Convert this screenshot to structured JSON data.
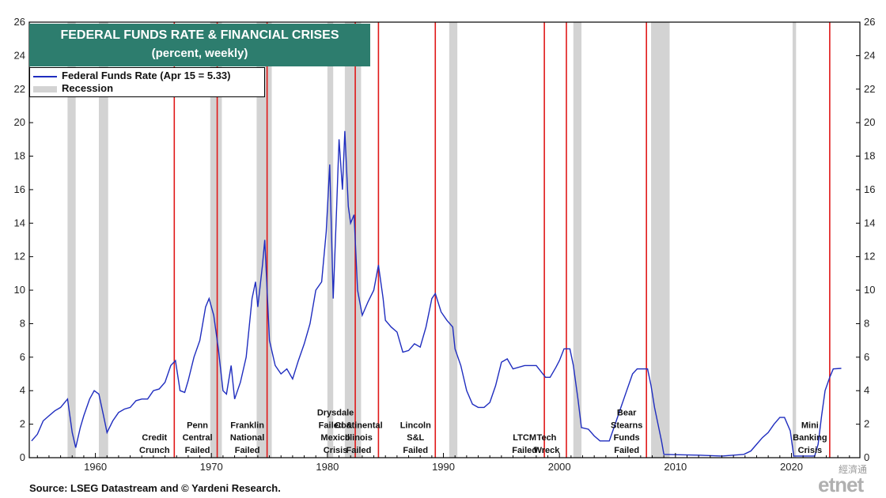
{
  "chart_data": {
    "type": "line",
    "title": "FEDERAL FUNDS RATE & FINANCIAL CRISES",
    "subtitle": "(percent, weekly)",
    "legend": [
      {
        "label": "Federal Funds Rate (Apr 15 = 5.33)",
        "color": "#1f2dbf"
      },
      {
        "label": "Recession",
        "color": "#d3d3d3"
      }
    ],
    "legend_placement": "top-left",
    "xlim": [
      1954.3,
      2025.9
    ],
    "ylim": [
      0,
      26
    ],
    "y_ticks": [
      "0",
      "2",
      "4",
      "6",
      "8",
      "10",
      "12",
      "14",
      "16",
      "18",
      "20",
      "22",
      "24",
      "26"
    ],
    "x_ticks": [
      "1960",
      "1970",
      "1980",
      "1990",
      "2000",
      "2010",
      "2020"
    ],
    "recessions": [
      [
        1957.6,
        1958.3
      ],
      [
        1960.3,
        1961.1
      ],
      [
        1969.9,
        1970.9
      ],
      [
        1973.9,
        1975.2
      ],
      [
        1980.0,
        1980.5
      ],
      [
        1981.5,
        1982.9
      ],
      [
        1990.5,
        1991.2
      ],
      [
        2001.2,
        2001.9
      ],
      [
        2007.9,
        2009.5
      ],
      [
        2020.1,
        2020.4
      ]
    ],
    "series": [
      {
        "color": "#1f2dbf",
        "points": [
          [
            1954.5,
            1.0
          ],
          [
            1955.0,
            1.4
          ],
          [
            1955.5,
            2.2
          ],
          [
            1956.0,
            2.5
          ],
          [
            1956.5,
            2.8
          ],
          [
            1957.0,
            3.0
          ],
          [
            1957.6,
            3.5
          ],
          [
            1958.0,
            1.5
          ],
          [
            1958.3,
            0.6
          ],
          [
            1958.7,
            1.8
          ],
          [
            1959.0,
            2.5
          ],
          [
            1959.5,
            3.5
          ],
          [
            1959.9,
            4.0
          ],
          [
            1960.3,
            3.8
          ],
          [
            1960.7,
            2.5
          ],
          [
            1961.0,
            1.5
          ],
          [
            1961.5,
            2.2
          ],
          [
            1962.0,
            2.7
          ],
          [
            1962.5,
            2.9
          ],
          [
            1963.0,
            3.0
          ],
          [
            1963.5,
            3.4
          ],
          [
            1964.0,
            3.5
          ],
          [
            1964.5,
            3.5
          ],
          [
            1965.0,
            4.0
          ],
          [
            1965.5,
            4.1
          ],
          [
            1966.0,
            4.5
          ],
          [
            1966.5,
            5.5
          ],
          [
            1966.9,
            5.8
          ],
          [
            1967.3,
            4.0
          ],
          [
            1967.7,
            3.9
          ],
          [
            1968.0,
            4.6
          ],
          [
            1968.5,
            6.0
          ],
          [
            1969.0,
            7.0
          ],
          [
            1969.5,
            9.0
          ],
          [
            1969.8,
            9.5
          ],
          [
            1970.2,
            8.5
          ],
          [
            1970.6,
            6.5
          ],
          [
            1971.0,
            4.0
          ],
          [
            1971.3,
            3.8
          ],
          [
            1971.7,
            5.5
          ],
          [
            1972.0,
            3.5
          ],
          [
            1972.5,
            4.5
          ],
          [
            1973.0,
            6.0
          ],
          [
            1973.5,
            9.5
          ],
          [
            1973.8,
            10.5
          ],
          [
            1974.0,
            9.0
          ],
          [
            1974.4,
            11.5
          ],
          [
            1974.6,
            13.0
          ],
          [
            1975.0,
            7.0
          ],
          [
            1975.5,
            5.5
          ],
          [
            1976.0,
            5.0
          ],
          [
            1976.5,
            5.3
          ],
          [
            1977.0,
            4.7
          ],
          [
            1977.5,
            5.8
          ],
          [
            1978.0,
            6.8
          ],
          [
            1978.5,
            8.0
          ],
          [
            1979.0,
            10.0
          ],
          [
            1979.5,
            10.5
          ],
          [
            1979.9,
            13.5
          ],
          [
            1980.2,
            17.5
          ],
          [
            1980.5,
            9.5
          ],
          [
            1980.8,
            15.0
          ],
          [
            1981.0,
            19.0
          ],
          [
            1981.3,
            16.0
          ],
          [
            1981.5,
            19.5
          ],
          [
            1981.8,
            15.0
          ],
          [
            1982.0,
            14.0
          ],
          [
            1982.3,
            14.5
          ],
          [
            1982.6,
            10.0
          ],
          [
            1983.0,
            8.5
          ],
          [
            1983.5,
            9.3
          ],
          [
            1984.0,
            10.0
          ],
          [
            1984.4,
            11.5
          ],
          [
            1984.8,
            9.5
          ],
          [
            1985.0,
            8.2
          ],
          [
            1985.5,
            7.8
          ],
          [
            1986.0,
            7.5
          ],
          [
            1986.5,
            6.3
          ],
          [
            1987.0,
            6.4
          ],
          [
            1987.5,
            6.8
          ],
          [
            1988.0,
            6.6
          ],
          [
            1988.5,
            7.8
          ],
          [
            1989.0,
            9.5
          ],
          [
            1989.3,
            9.8
          ],
          [
            1989.8,
            8.7
          ],
          [
            1990.3,
            8.2
          ],
          [
            1990.8,
            7.8
          ],
          [
            1991.0,
            6.5
          ],
          [
            1991.5,
            5.5
          ],
          [
            1992.0,
            4.0
          ],
          [
            1992.5,
            3.2
          ],
          [
            1993.0,
            3.0
          ],
          [
            1993.5,
            3.0
          ],
          [
            1994.0,
            3.3
          ],
          [
            1994.5,
            4.3
          ],
          [
            1995.0,
            5.7
          ],
          [
            1995.5,
            5.9
          ],
          [
            1996.0,
            5.3
          ],
          [
            1997.0,
            5.5
          ],
          [
            1998.0,
            5.5
          ],
          [
            1998.8,
            4.8
          ],
          [
            1999.2,
            4.8
          ],
          [
            1999.7,
            5.4
          ],
          [
            2000.0,
            5.8
          ],
          [
            2000.4,
            6.5
          ],
          [
            2000.9,
            6.5
          ],
          [
            2001.2,
            5.5
          ],
          [
            2001.6,
            3.5
          ],
          [
            2001.9,
            1.8
          ],
          [
            2002.5,
            1.7
          ],
          [
            2003.0,
            1.3
          ],
          [
            2003.5,
            1.0
          ],
          [
            2004.3,
            1.0
          ],
          [
            2004.8,
            2.0
          ],
          [
            2005.3,
            3.0
          ],
          [
            2005.8,
            4.0
          ],
          [
            2006.3,
            5.0
          ],
          [
            2006.7,
            5.3
          ],
          [
            2007.6,
            5.3
          ],
          [
            2007.9,
            4.3
          ],
          [
            2008.2,
            3.0
          ],
          [
            2008.5,
            2.0
          ],
          [
            2008.8,
            1.0
          ],
          [
            2009.0,
            0.2
          ],
          [
            2010.0,
            0.18
          ],
          [
            2012.0,
            0.15
          ],
          [
            2014.0,
            0.1
          ],
          [
            2015.9,
            0.2
          ],
          [
            2016.5,
            0.4
          ],
          [
            2017.0,
            0.8
          ],
          [
            2017.5,
            1.2
          ],
          [
            2018.0,
            1.5
          ],
          [
            2018.5,
            2.0
          ],
          [
            2019.0,
            2.4
          ],
          [
            2019.4,
            2.4
          ],
          [
            2019.9,
            1.6
          ],
          [
            2020.2,
            0.1
          ],
          [
            2022.0,
            0.1
          ],
          [
            2022.3,
            0.8
          ],
          [
            2022.6,
            2.5
          ],
          [
            2022.9,
            4.0
          ],
          [
            2023.3,
            4.8
          ],
          [
            2023.6,
            5.3
          ],
          [
            2024.3,
            5.33
          ]
        ]
      }
    ],
    "crises": [
      {
        "x": 1966.8,
        "label": [
          "Credit",
          "Crunch"
        ]
      },
      {
        "x": 1970.5,
        "label": [
          "Penn",
          "Central",
          "Failed"
        ]
      },
      {
        "x": 1974.8,
        "label": [
          "Franklin",
          "National",
          "Failed"
        ]
      },
      {
        "x": 1982.4,
        "label": [
          "Drysdale",
          "Failed &",
          "Mexico",
          "Crisis"
        ]
      },
      {
        "x": 1984.4,
        "label": [
          "Continental",
          "Illinois",
          "Failed"
        ]
      },
      {
        "x": 1989.3,
        "label": [
          "Lincoln",
          "S&L",
          "Failed"
        ]
      },
      {
        "x": 1998.7,
        "label": [
          "LTCM",
          "Failed"
        ]
      },
      {
        "x": 2000.6,
        "label": [
          "Tech",
          "Wreck"
        ]
      },
      {
        "x": 2007.5,
        "label": [
          "Bear",
          "Stearns",
          "Funds",
          "Failed"
        ]
      },
      {
        "x": 2023.3,
        "label": [
          "Mini",
          "Banking",
          "Crisis"
        ]
      }
    ]
  },
  "source": "Source: LSEG Datastream and © Yardeni Research.",
  "watermark": {
    "cn": "經濟通",
    "brand": "etnet"
  }
}
